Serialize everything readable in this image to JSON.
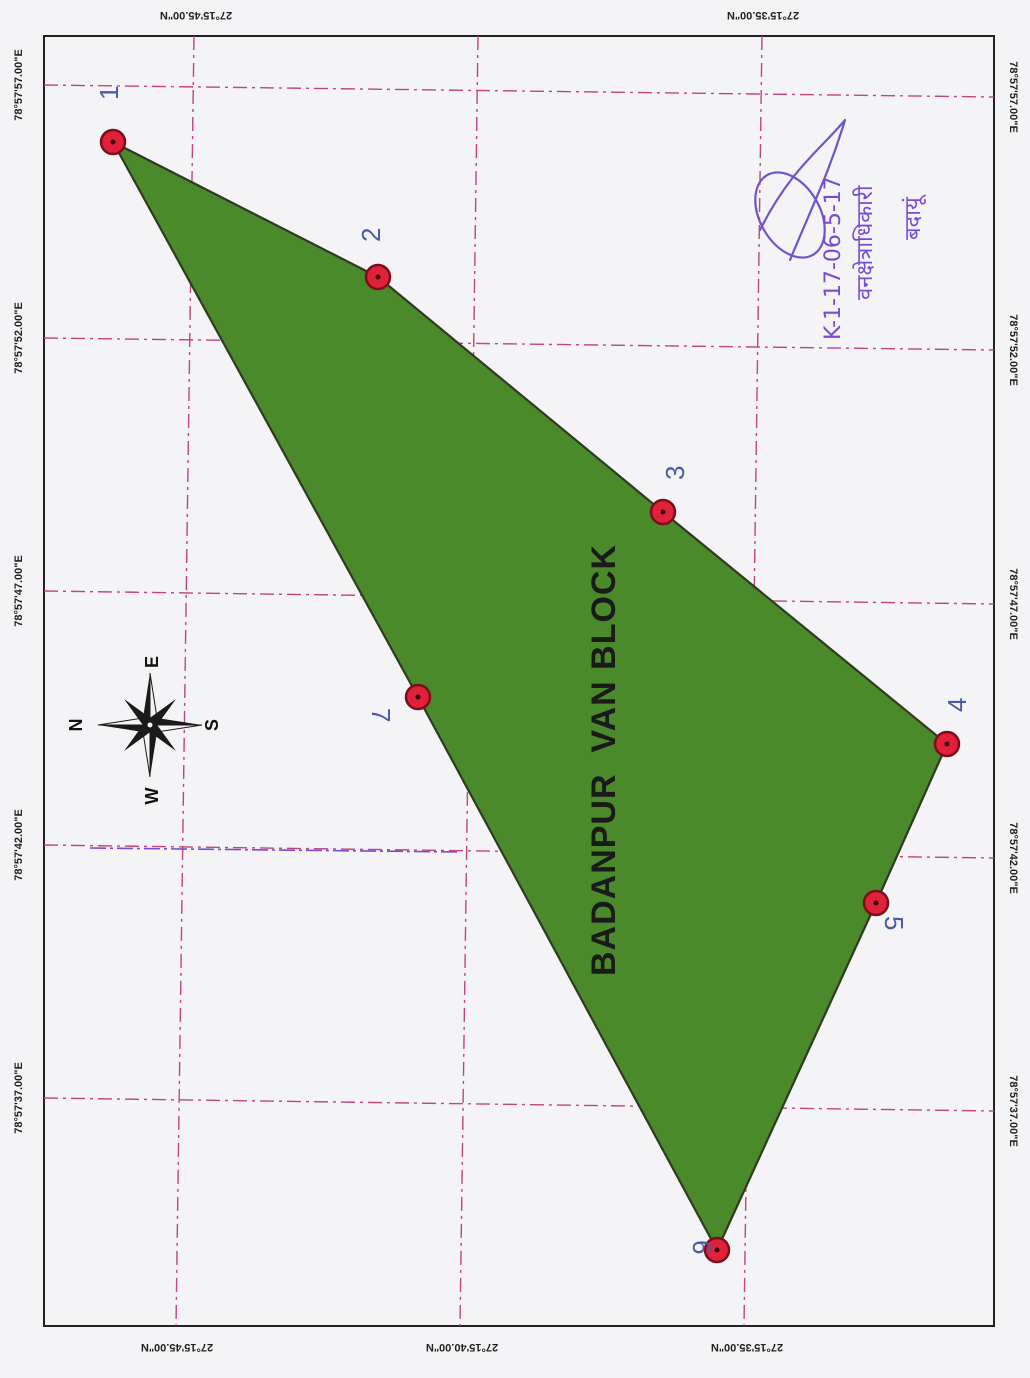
{
  "map": {
    "block_name": "BADANPUR  VAN BLOCK",
    "colors": {
      "polygon_fill": "#4a8a2a",
      "polygon_stroke": "#2f3a22",
      "marker_fill": "#e0213a",
      "marker_stroke": "#7a0e1c",
      "grid": "#c0457a",
      "point_label": "#4a5aa8",
      "signature_ink": "#7a4bd0"
    }
  },
  "boundary_points": [
    {
      "id": "1",
      "label": "1"
    },
    {
      "id": "2",
      "label": "2"
    },
    {
      "id": "3",
      "label": "3"
    },
    {
      "id": "4",
      "label": "4"
    },
    {
      "id": "5",
      "label": "5"
    },
    {
      "id": "6",
      "label": "6"
    },
    {
      "id": "7",
      "label": "7"
    }
  ],
  "coordinates": {
    "top_lat_1": "27°15'45.00\"N",
    "top_lat_2": "27°15'35.00\"N",
    "bottom_lat_1": "27°15'45.00\"N",
    "bottom_lat_2": "27°15'40.00\"N",
    "bottom_lat_3": "27°15'35.00\"N",
    "left_lon_1": "78°57'57.00\"E",
    "left_lon_2": "78°57'52.00\"E",
    "left_lon_3": "78°57'47.00\"E",
    "left_lon_4": "78°57'42.00\"E",
    "left_lon_5": "78°57'37.00\"E",
    "right_lon_1": "78°57'57.00\"E",
    "right_lon_2": "78°57'52.00\"E",
    "right_lon_3": "78°57'47.00\"E",
    "right_lon_4": "78°57'42.00\"E",
    "right_lon_5": "78°57'37.00\"E"
  },
  "compass": {
    "north": "N",
    "south": "S",
    "east": "E",
    "west": "W",
    "icon": "compass-rose-icon"
  },
  "signature": {
    "date_text": "K-1-17-06-5-17",
    "line1": "वनक्षेत्राधिकारी",
    "line2": "बदायूं"
  }
}
